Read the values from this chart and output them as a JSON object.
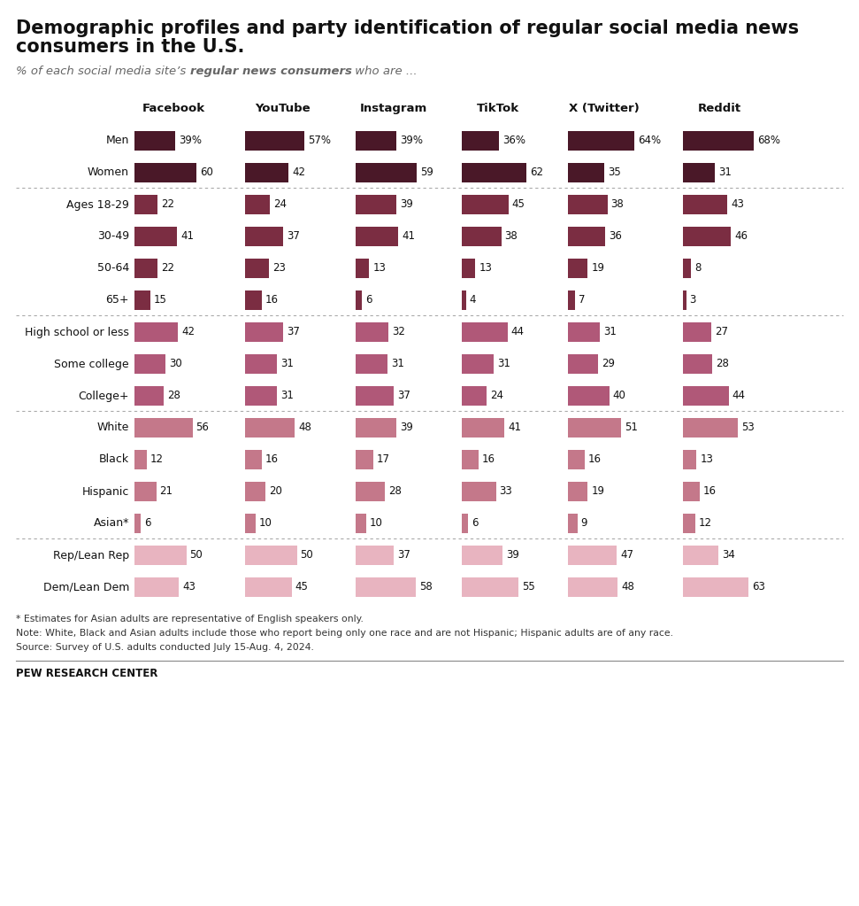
{
  "title_line1": "Demographic profiles and party identification of regular social media news",
  "title_line2": "consumers in the U.S.",
  "subtitle_normal": "% of each social media site’s ",
  "subtitle_bold": "regular news consumers",
  "subtitle_end": " who are ...",
  "columns": [
    "Facebook",
    "YouTube",
    "Instagram",
    "TikTok",
    "X (Twitter)",
    "Reddit"
  ],
  "rows": [
    {
      "label": "Men",
      "group": "gender",
      "values": [
        39,
        57,
        39,
        36,
        64,
        68
      ],
      "show_pct": true
    },
    {
      "label": "Women",
      "group": "gender",
      "values": [
        60,
        42,
        59,
        62,
        35,
        31
      ],
      "show_pct": false
    },
    {
      "label": "Ages 18-29",
      "group": "age",
      "values": [
        22,
        24,
        39,
        45,
        38,
        43
      ],
      "show_pct": false
    },
    {
      "label": "30-49",
      "group": "age",
      "values": [
        41,
        37,
        41,
        38,
        36,
        46
      ],
      "show_pct": false
    },
    {
      "label": "50-64",
      "group": "age",
      "values": [
        22,
        23,
        13,
        13,
        19,
        8
      ],
      "show_pct": false
    },
    {
      "label": "65+",
      "group": "age",
      "values": [
        15,
        16,
        6,
        4,
        7,
        3
      ],
      "show_pct": false
    },
    {
      "label": "High school or less",
      "group": "education",
      "values": [
        42,
        37,
        32,
        44,
        31,
        27
      ],
      "show_pct": false
    },
    {
      "label": "Some college",
      "group": "education",
      "values": [
        30,
        31,
        31,
        31,
        29,
        28
      ],
      "show_pct": false
    },
    {
      "label": "College+",
      "group": "education",
      "values": [
        28,
        31,
        37,
        24,
        40,
        44
      ],
      "show_pct": false
    },
    {
      "label": "White",
      "group": "race",
      "values": [
        56,
        48,
        39,
        41,
        51,
        53
      ],
      "show_pct": false
    },
    {
      "label": "Black",
      "group": "race",
      "values": [
        12,
        16,
        17,
        16,
        16,
        13
      ],
      "show_pct": false
    },
    {
      "label": "Hispanic",
      "group": "race",
      "values": [
        21,
        20,
        28,
        33,
        19,
        16
      ],
      "show_pct": false
    },
    {
      "label": "Asian*",
      "group": "race",
      "values": [
        6,
        10,
        10,
        6,
        9,
        12
      ],
      "show_pct": false
    },
    {
      "label": "Rep/Lean Rep",
      "group": "party",
      "values": [
        50,
        50,
        37,
        39,
        47,
        34
      ],
      "show_pct": false
    },
    {
      "label": "Dem/Lean Dem",
      "group": "party",
      "values": [
        43,
        45,
        58,
        55,
        48,
        63
      ],
      "show_pct": false
    }
  ],
  "group_colors": {
    "gender": "#4a1828",
    "age": "#7b2d42",
    "education": "#b05878",
    "race": "#c4788a",
    "party": "#e8b4c0"
  },
  "footnote1": "* Estimates for Asian adults are representative of English speakers only.",
  "footnote2": "Note: White, Black and Asian adults include those who report being only one race and are not Hispanic; Hispanic adults are of any race.",
  "footnote3": "Source: Survey of U.S. adults conducted July 15-Aug. 4, 2024.",
  "footer": "PEW RESEARCH CENTER",
  "bg_color": "#ffffff",
  "bar_max_val": 70
}
